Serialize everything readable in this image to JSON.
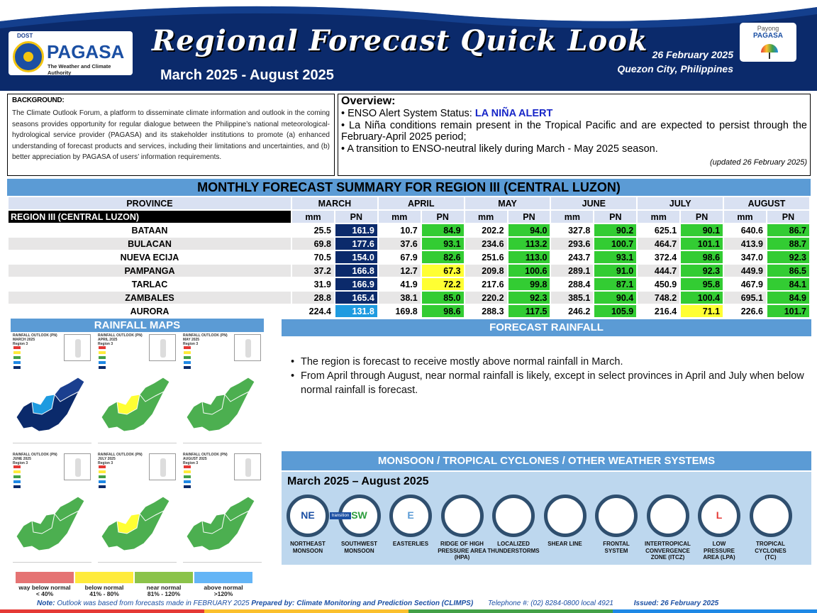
{
  "header": {
    "agency_dost": "DOST",
    "agency_name": "PAGASA",
    "agency_tagline": "The Weather and Climate Authority",
    "title": "Regional Forecast Quick Look",
    "period": "March 2025 - August 2025",
    "date": "26 February 2025",
    "location": "Quezon City, Philippines",
    "payong_1": "Payong",
    "payong_2": "PAGASA"
  },
  "background": {
    "heading": "BACKGROUND:",
    "text": "The Climate Outlook Forum, a platform to disseminate climate information and outlook in the coming seasons provides opportunity for regular dialogue between the Philippine’s national meteorological-hydrological service provider (PAGASA) and its stakeholder institutions to promote (a) enhanced understanding of forecast products and services, including their limitations and uncertainties, and (b) better appreciation by PAGASA of users’ information requirements."
  },
  "overview": {
    "heading": "Overview:",
    "enso_label": "ENSO Alert System Status: ",
    "enso_status": "LA NIÑA ALERT",
    "bullet2": "La Niña conditions remain present in the Tropical Pacific and are expected to persist through the February-April 2025 period;",
    "bullet3": "A transition to ENSO-neutral likely during March - May 2025 season.",
    "updated": "(updated 26 February 2025)"
  },
  "summary": {
    "title": "MONTHLY FORECAST SUMMARY FOR REGION III (CENTRAL LUZON)",
    "province_header": "PROVINCE",
    "region_label": "REGION III (CENTRAL LUZON)",
    "months": [
      "MARCH",
      "APRIL",
      "MAY",
      "JUNE",
      "JULY",
      "AUGUST"
    ],
    "mm_label": "mm",
    "pn_label": "PN",
    "rows": [
      {
        "province": "BATAAN",
        "values": [
          [
            "25.5",
            "161.9"
          ],
          [
            "10.7",
            "84.9"
          ],
          [
            "202.2",
            "94.0"
          ],
          [
            "327.8",
            "90.2"
          ],
          [
            "625.1",
            "90.1"
          ],
          [
            "640.6",
            "86.7"
          ]
        ]
      },
      {
        "province": "BULACAN",
        "values": [
          [
            "69.8",
            "177.6"
          ],
          [
            "37.6",
            "93.1"
          ],
          [
            "234.6",
            "113.2"
          ],
          [
            "293.6",
            "100.7"
          ],
          [
            "464.7",
            "101.1"
          ],
          [
            "413.9",
            "88.7"
          ]
        ]
      },
      {
        "province": "NUEVA ECIJA",
        "values": [
          [
            "70.5",
            "154.0"
          ],
          [
            "67.9",
            "82.6"
          ],
          [
            "251.6",
            "113.0"
          ],
          [
            "243.7",
            "93.1"
          ],
          [
            "372.4",
            "98.6"
          ],
          [
            "347.0",
            "92.3"
          ]
        ]
      },
      {
        "province": "PAMPANGA",
        "values": [
          [
            "37.2",
            "166.8"
          ],
          [
            "12.7",
            "67.3"
          ],
          [
            "209.8",
            "100.6"
          ],
          [
            "289.1",
            "91.0"
          ],
          [
            "444.7",
            "92.3"
          ],
          [
            "449.9",
            "86.5"
          ]
        ]
      },
      {
        "province": "TARLAC",
        "values": [
          [
            "31.9",
            "166.9"
          ],
          [
            "41.9",
            "72.2"
          ],
          [
            "217.6",
            "99.8"
          ],
          [
            "288.4",
            "87.1"
          ],
          [
            "450.9",
            "95.8"
          ],
          [
            "467.9",
            "84.1"
          ]
        ]
      },
      {
        "province": "ZAMBALES",
        "values": [
          [
            "28.8",
            "165.4"
          ],
          [
            "38.1",
            "85.0"
          ],
          [
            "220.2",
            "92.3"
          ],
          [
            "385.1",
            "90.4"
          ],
          [
            "748.2",
            "100.4"
          ],
          [
            "695.1",
            "84.9"
          ]
        ]
      },
      {
        "province": "AURORA",
        "values": [
          [
            "224.4",
            "131.8"
          ],
          [
            "169.8",
            "98.6"
          ],
          [
            "288.3",
            "117.5"
          ],
          [
            "246.2",
            "105.9"
          ],
          [
            "216.4",
            "71.1"
          ],
          [
            "226.6",
            "101.7"
          ]
        ]
      }
    ],
    "colors": {
      "way_above": "#0b2a6b",
      "above": "#1e9be0",
      "near": "#33cc33",
      "below": "#ffff33"
    }
  },
  "rainfall_maps": {
    "title": "RAINFALL MAPS",
    "maps": [
      {
        "t1": "RAINFALL OUTLOOK (PN)",
        "t2": "MARCH 2025",
        "t3": "Region 3"
      },
      {
        "t1": "RAINFALL OUTLOOK (PN)",
        "t2": "APRIL 2025",
        "t3": "Region 3"
      },
      {
        "t1": "RAINFALL OUTLOOK (PN)",
        "t2": "MAY 2025",
        "t3": "Region 3"
      },
      {
        "t1": "RAINFALL OUTLOOK (PN)",
        "t2": "JUNE 2025",
        "t3": "Region 3"
      },
      {
        "t1": "RAINFALL OUTLOOK (PN)",
        "t2": "JULY 2025",
        "t3": "Region 3"
      },
      {
        "t1": "RAINFALL OUTLOOK (PN)",
        "t2": "AUGUST 2025",
        "t3": "Region 3"
      }
    ],
    "legend": [
      {
        "l1": "way below normal",
        "l2": "< 40%",
        "color": "#e57373"
      },
      {
        "l1": "below normal",
        "l2": "41% - 80%",
        "color": "#ffeb3b"
      },
      {
        "l1": "near normal",
        "l2": "81% - 120%",
        "color": "#8bc34a"
      },
      {
        "l1": "above normal",
        "l2": ">120%",
        "color": "#64b5f6"
      }
    ]
  },
  "forecast_rainfall": {
    "title": "FORECAST RAINFALL",
    "bullets": [
      "The region is forecast to receive mostly above normal rainfall in March.",
      "From April through August, near normal rainfall is likely, except in select provinces in April and July when below normal rainfall is forecast."
    ]
  },
  "systems": {
    "title": "MONSOON / TROPICAL CYCLONES / OTHER WEATHER SYSTEMS",
    "period": "March 2025 – August 2025",
    "transition": "transition",
    "items": [
      {
        "icon": "NE",
        "l1": "NORTHEAST",
        "l2": "MONSOON",
        "l3": ""
      },
      {
        "icon": "SW",
        "l1": "SOUTHWEST",
        "l2": "MONSOON",
        "l3": ""
      },
      {
        "icon": "E",
        "l1": "EASTERLIES",
        "l2": "",
        "l3": ""
      },
      {
        "icon": "",
        "l1": "RIDGE OF HIGH",
        "l2": "PRESSURE AREA",
        "l3": "(HPA)"
      },
      {
        "icon": "",
        "l1": "LOCALIZED",
        "l2": "THUNDERSTORMS",
        "l3": ""
      },
      {
        "icon": "",
        "l1": "SHEAR LINE",
        "l2": "",
        "l3": ""
      },
      {
        "icon": "",
        "l1": "FRONTAL",
        "l2": "SYSTEM",
        "l3": ""
      },
      {
        "icon": "",
        "l1": "INTERTROPICAL",
        "l2": "CONVERGENCE",
        "l3": "ZONE (ITCZ)"
      },
      {
        "icon": "L",
        "l1": "LOW",
        "l2": "PRESSURE",
        "l3": "AREA (LPA)"
      },
      {
        "icon": "",
        "l1": "TROPICAL",
        "l2": "CYCLONES",
        "l3": "(TC)"
      }
    ]
  },
  "footer": {
    "note_label": "Note:",
    "note_text": " Outlook was based from forecasts made in FEBRUARY 2025 ",
    "prepared": "Prepared by: Climate Monitoring and Prediction Section (CLIMPS)",
    "telephone": "Telephone #: (02) 8284-0800 local 4921",
    "issued": "Issued: 26 February 2025"
  }
}
